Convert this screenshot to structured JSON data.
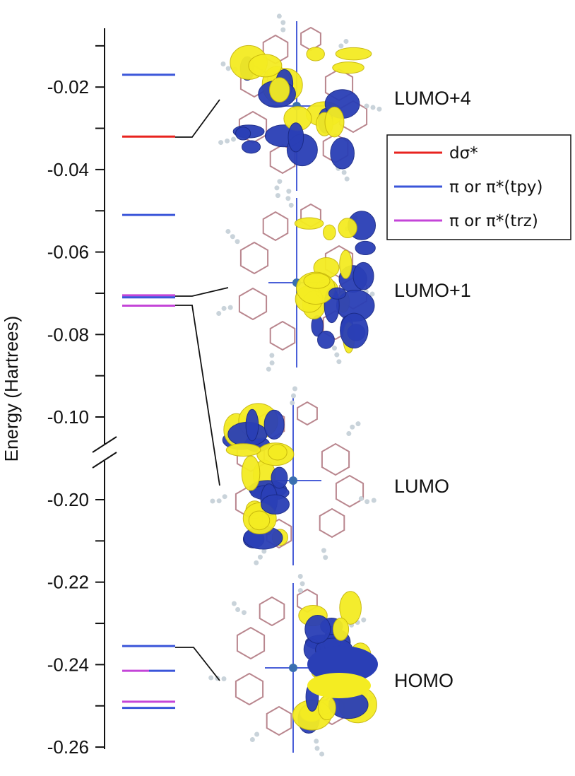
{
  "chart_data": {
    "type": "energy-level diagram",
    "ylabel": "Energy (Hartrees)",
    "axis_break": [
      -0.1,
      -0.2
    ],
    "segments": [
      {
        "ylim": [
          -0.26,
          -0.2
        ],
        "ticks": [
          "-0.26",
          "-0.24",
          "-0.22",
          "-0.20"
        ]
      },
      {
        "ylim": [
          -0.1,
          -0.01
        ],
        "ticks": [
          "-0.10",
          "-0.08",
          "-0.06",
          "-0.04",
          "-0.02"
        ]
      }
    ],
    "series": [
      {
        "name": "dσ*",
        "color": "#e8231f"
      },
      {
        "name": "π or π*(tpy)",
        "color": "#3a55d9"
      },
      {
        "name": "π or π*(trz)",
        "color": "#c445d8"
      }
    ],
    "levels": [
      {
        "energy": -0.017,
        "series": 1
      },
      {
        "energy": -0.032,
        "series": 0
      },
      {
        "energy": -0.051,
        "series": 1
      },
      {
        "energy": -0.0705,
        "series": 2
      },
      {
        "energy": -0.071,
        "series": 1
      },
      {
        "energy": -0.073,
        "series": 2
      },
      {
        "energy": -0.2355,
        "series": 1
      },
      {
        "energy": -0.2415,
        "series": 2,
        "split_with": 1
      },
      {
        "energy": -0.249,
        "series": 2
      },
      {
        "energy": -0.2505,
        "series": 1
      }
    ],
    "orbitals": [
      {
        "label": "LUMO+4",
        "energy": -0.032
      },
      {
        "label": "LUMO+1",
        "energy": -0.071
      },
      {
        "label": "LUMO",
        "energy": -0.073
      },
      {
        "label": "HOMO",
        "energy": -0.2355
      }
    ]
  }
}
